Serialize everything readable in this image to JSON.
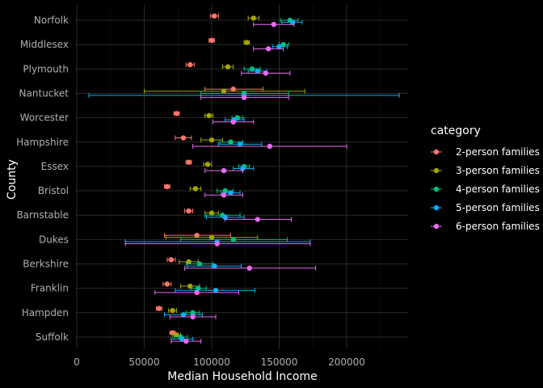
{
  "chart_data": {
    "type": "scatter",
    "xlabel": "Median Household Income",
    "ylabel": "County",
    "xlim": [
      0,
      232000
    ],
    "x_ticks": [
      0,
      50000,
      100000,
      150000,
      200000
    ],
    "x_tick_labels": [
      "0",
      "50000",
      "100000",
      "150000",
      "200000"
    ],
    "counties": [
      "Norfolk",
      "Middlesex",
      "Plymouth",
      "Nantucket",
      "Worcester",
      "Hampshire",
      "Essex",
      "Bristol",
      "Barnstable",
      "Dukes",
      "Berkshire",
      "Franklin",
      "Hampden",
      "Suffolk"
    ],
    "legend": {
      "title": "category",
      "placement": "right",
      "entries": [
        "2-person families",
        "3-person families",
        "4-person families",
        "5-person families",
        "6-person families"
      ]
    },
    "grid": true,
    "series": [
      {
        "name": "2-person families",
        "color": "#F8766D",
        "points": [
          {
            "county": "Norfolk",
            "x": 102000,
            "xmin": 99000,
            "xmax": 105000
          },
          {
            "county": "Middlesex",
            "x": 100000,
            "xmin": 98000,
            "xmax": 102000
          },
          {
            "county": "Plymouth",
            "x": 84000,
            "xmin": 81000,
            "xmax": 87000
          },
          {
            "county": "Nantucket",
            "x": 116000,
            "xmin": 95000,
            "xmax": 138000
          },
          {
            "county": "Worcester",
            "x": 74000,
            "xmin": 72000,
            "xmax": 76000
          },
          {
            "county": "Hampshire",
            "x": 79000,
            "xmin": 73000,
            "xmax": 85000
          },
          {
            "county": "Essex",
            "x": 83000,
            "xmin": 81000,
            "xmax": 85000
          },
          {
            "county": "Bristol",
            "x": 67000,
            "xmin": 65000,
            "xmax": 69000
          },
          {
            "county": "Barnstable",
            "x": 83000,
            "xmin": 80000,
            "xmax": 86000
          },
          {
            "county": "Dukes",
            "x": 89000,
            "xmin": 65000,
            "xmax": 114000
          },
          {
            "county": "Berkshire",
            "x": 70000,
            "xmin": 67000,
            "xmax": 73000
          },
          {
            "county": "Franklin",
            "x": 67000,
            "xmin": 64000,
            "xmax": 70000
          },
          {
            "county": "Hampden",
            "x": 61000,
            "xmin": 59000,
            "xmax": 63000
          },
          {
            "county": "Suffolk",
            "x": 71000,
            "xmin": 69000,
            "xmax": 73000
          }
        ]
      },
      {
        "name": "3-person families",
        "color": "#A3A500",
        "points": [
          {
            "county": "Norfolk",
            "x": 131000,
            "xmin": 127000,
            "xmax": 135000
          },
          {
            "county": "Middlesex",
            "x": 126000,
            "xmin": 124000,
            "xmax": 128000
          },
          {
            "county": "Plymouth",
            "x": 112000,
            "xmin": 108000,
            "xmax": 116000
          },
          {
            "county": "Nantucket",
            "x": 109000,
            "xmin": 50000,
            "xmax": 169000
          },
          {
            "county": "Worcester",
            "x": 98000,
            "xmin": 95000,
            "xmax": 101000
          },
          {
            "county": "Hampshire",
            "x": 100000,
            "xmin": 92000,
            "xmax": 108000
          },
          {
            "county": "Essex",
            "x": 97000,
            "xmin": 94000,
            "xmax": 100000
          },
          {
            "county": "Bristol",
            "x": 88000,
            "xmin": 84000,
            "xmax": 92000
          },
          {
            "county": "Barnstable",
            "x": 100000,
            "xmin": 95000,
            "xmax": 105000
          },
          {
            "county": "Dukes",
            "x": 100000,
            "xmin": 66000,
            "xmax": 134000
          },
          {
            "county": "Berkshire",
            "x": 83000,
            "xmin": 76000,
            "xmax": 90000
          },
          {
            "county": "Franklin",
            "x": 84000,
            "xmin": 77000,
            "xmax": 91000
          },
          {
            "county": "Hampden",
            "x": 71000,
            "xmin": 68000,
            "xmax": 74000
          },
          {
            "county": "Suffolk",
            "x": 74000,
            "xmin": 71000,
            "xmax": 77000
          }
        ]
      },
      {
        "name": "4-person families",
        "color": "#00BF7D",
        "points": [
          {
            "county": "Norfolk",
            "x": 158000,
            "xmin": 151000,
            "xmax": 164000
          },
          {
            "county": "Middlesex",
            "x": 153000,
            "xmin": 150000,
            "xmax": 157000
          },
          {
            "county": "Plymouth",
            "x": 130000,
            "xmin": 124000,
            "xmax": 136000
          },
          {
            "county": "Nantucket",
            "x": 124000,
            "xmin": 92000,
            "xmax": 157000
          },
          {
            "county": "Worcester",
            "x": 119000,
            "xmin": 115000,
            "xmax": 123000
          },
          {
            "county": "Hampshire",
            "x": 114000,
            "xmin": 106000,
            "xmax": 123000
          },
          {
            "county": "Essex",
            "x": 124000,
            "xmin": 120000,
            "xmax": 128000
          },
          {
            "county": "Bristol",
            "x": 110000,
            "xmin": 104000,
            "xmax": 116000
          },
          {
            "county": "Barnstable",
            "x": 108000,
            "xmin": 95000,
            "xmax": 121000
          },
          {
            "county": "Dukes",
            "x": 116000,
            "xmin": 77000,
            "xmax": 156000
          },
          {
            "county": "Berkshire",
            "x": 91000,
            "xmin": 81000,
            "xmax": 101000
          },
          {
            "county": "Franklin",
            "x": 90000,
            "xmin": 85000,
            "xmax": 96000
          },
          {
            "county": "Hampden",
            "x": 86000,
            "xmin": 81000,
            "xmax": 91000
          },
          {
            "county": "Suffolk",
            "x": 77000,
            "xmin": 72000,
            "xmax": 82000
          }
        ]
      },
      {
        "name": "5-person families",
        "color": "#00B0F6",
        "points": [
          {
            "county": "Norfolk",
            "x": 160000,
            "xmin": 152000,
            "xmax": 167000
          },
          {
            "county": "Middlesex",
            "x": 150000,
            "xmin": 145000,
            "xmax": 156000
          },
          {
            "county": "Plymouth",
            "x": 134000,
            "xmin": 127000,
            "xmax": 141000
          },
          {
            "county": "Nantucket",
            "x": 124000,
            "xmin": 9000,
            "xmax": 239000
          },
          {
            "county": "Worcester",
            "x": 117000,
            "xmin": 110000,
            "xmax": 124000
          },
          {
            "county": "Hampshire",
            "x": 121000,
            "xmin": 105000,
            "xmax": 137000
          },
          {
            "county": "Essex",
            "x": 123000,
            "xmin": 116000,
            "xmax": 131000
          },
          {
            "county": "Bristol",
            "x": 114000,
            "xmin": 107000,
            "xmax": 121000
          },
          {
            "county": "Barnstable",
            "x": 110000,
            "xmin": 96000,
            "xmax": 124000
          },
          {
            "county": "Dukes",
            "x": 104000,
            "xmin": 36000,
            "xmax": 173000
          },
          {
            "county": "Berkshire",
            "x": 102000,
            "xmin": 82000,
            "xmax": 122000
          },
          {
            "county": "Franklin",
            "x": 103000,
            "xmin": 73000,
            "xmax": 132000
          },
          {
            "county": "Hampden",
            "x": 79000,
            "xmin": 65000,
            "xmax": 93000
          },
          {
            "county": "Suffolk",
            "x": 78000,
            "xmin": 70000,
            "xmax": 86000
          }
        ]
      },
      {
        "name": "6-person families",
        "color": "#E76BF3",
        "points": [
          {
            "county": "Norfolk",
            "x": 146000,
            "xmin": 131000,
            "xmax": 161000
          },
          {
            "county": "Middlesex",
            "x": 142000,
            "xmin": 131000,
            "xmax": 153000
          },
          {
            "county": "Plymouth",
            "x": 140000,
            "xmin": 122000,
            "xmax": 158000
          },
          {
            "county": "Nantucket",
            "x": 124000,
            "xmin": 92000,
            "xmax": 157000
          },
          {
            "county": "Worcester",
            "x": 116000,
            "xmin": 101000,
            "xmax": 131000
          },
          {
            "county": "Hampshire",
            "x": 143000,
            "xmin": 86000,
            "xmax": 200000
          },
          {
            "county": "Essex",
            "x": 109000,
            "xmin": 95000,
            "xmax": 123000
          },
          {
            "county": "Bristol",
            "x": 109000,
            "xmin": 95000,
            "xmax": 123000
          },
          {
            "county": "Barnstable",
            "x": 134000,
            "xmin": 110000,
            "xmax": 159000
          },
          {
            "county": "Dukes",
            "x": 104000,
            "xmin": 36000,
            "xmax": 173000
          },
          {
            "county": "Berkshire",
            "x": 128000,
            "xmin": 80000,
            "xmax": 177000
          },
          {
            "county": "Franklin",
            "x": 89000,
            "xmin": 58000,
            "xmax": 120000
          },
          {
            "county": "Hampden",
            "x": 86000,
            "xmin": 69000,
            "xmax": 103000
          },
          {
            "county": "Suffolk",
            "x": 81000,
            "xmin": 70000,
            "xmax": 92000
          }
        ]
      }
    ]
  }
}
